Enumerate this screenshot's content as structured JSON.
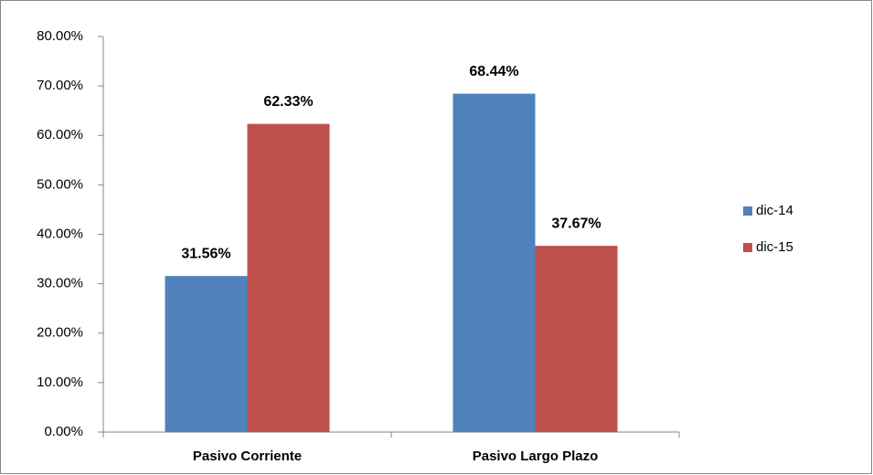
{
  "chart_data": {
    "type": "bar",
    "categories": [
      "Pasivo Corriente",
      "Pasivo Largo Plazo"
    ],
    "series": [
      {
        "name": "dic-14",
        "color": "#4f81bd",
        "values": [
          31.56,
          68.44
        ],
        "value_labels": [
          "31.56%",
          "68.44%"
        ]
      },
      {
        "name": "dic-15",
        "color": "#c0504d",
        "values": [
          62.33,
          37.67
        ],
        "value_labels": [
          "62.33%",
          "37.67%"
        ]
      }
    ],
    "ylim": [
      0,
      80
    ],
    "yticks": [
      {
        "value": 0,
        "label": "0.00%"
      },
      {
        "value": 10,
        "label": "10.00%"
      },
      {
        "value": 20,
        "label": "20.00%"
      },
      {
        "value": 30,
        "label": "30.00%"
      },
      {
        "value": 40,
        "label": "40.00%"
      },
      {
        "value": 50,
        "label": "50.00%"
      },
      {
        "value": 60,
        "label": "60.00%"
      },
      {
        "value": 70,
        "label": "70.00%"
      },
      {
        "value": 80,
        "label": "80.00%"
      }
    ],
    "grid": false,
    "legend": "right"
  }
}
